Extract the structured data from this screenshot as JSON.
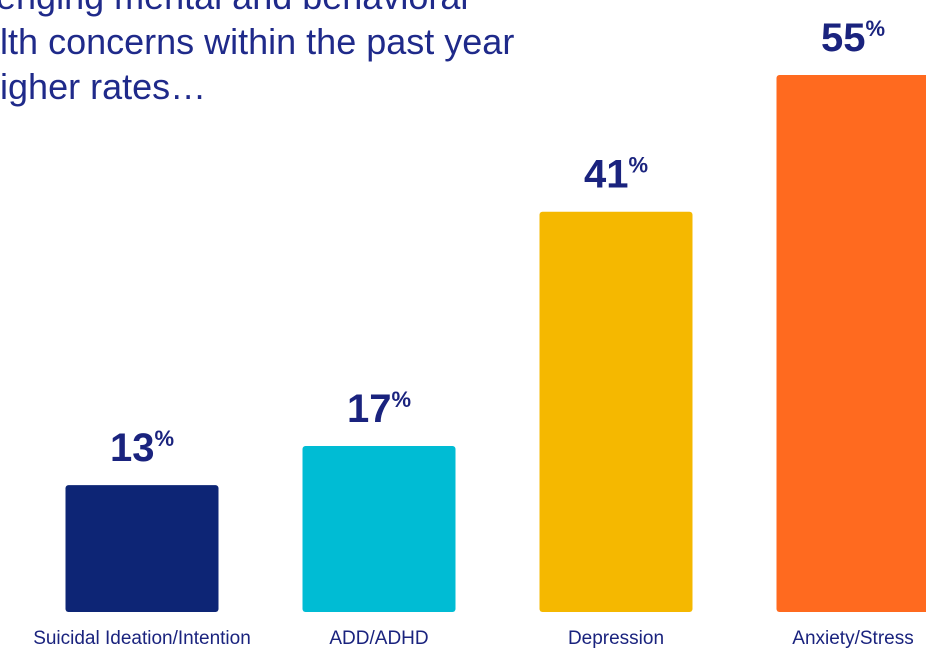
{
  "headline": {
    "line1": "allenging mental and behavioral",
    "line2": "ealth concerns within the past year",
    "line3": "t higher rates…"
  },
  "chart_data": {
    "type": "bar",
    "categories": [
      "Suicidal Ideation/Intention",
      "ADD/ADHD",
      "Depression",
      "Anxiety/Stress"
    ],
    "values": [
      13,
      17,
      41,
      55
    ],
    "value_suffix": "%",
    "colors": [
      "#0d2575",
      "#00bcd4",
      "#f5b800",
      "#ff6a1f"
    ],
    "ylim": [
      0,
      55
    ],
    "grid": false,
    "legend": "none"
  }
}
